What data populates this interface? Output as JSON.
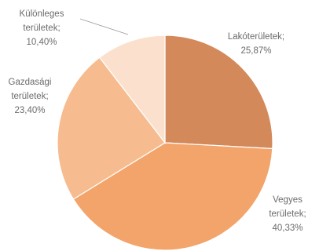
{
  "chart_data": {
    "type": "pie",
    "start_angle_deg": 0,
    "direction": "clockwise",
    "legend": "none",
    "slices": [
      {
        "name": "Lakóterületek",
        "value": 25.87,
        "label_lines": [
          "Lakóterületek;",
          "25,87%"
        ],
        "color": "#d4895a"
      },
      {
        "name": "Vegyes területek",
        "value": 40.33,
        "label_lines": [
          "Vegyes",
          "területek;",
          "40,33%"
        ],
        "color": "#f2a46a"
      },
      {
        "name": "Gazdasági területek",
        "value": 23.4,
        "label_lines": [
          "Gazdasági",
          "területek;",
          "23,40%"
        ],
        "color": "#f6bc8f"
      },
      {
        "name": "Különleges területek",
        "value": 10.4,
        "label_lines": [
          "Különleges",
          "területek;",
          "10,40%"
        ],
        "color": "#fbe1cd"
      }
    ]
  }
}
